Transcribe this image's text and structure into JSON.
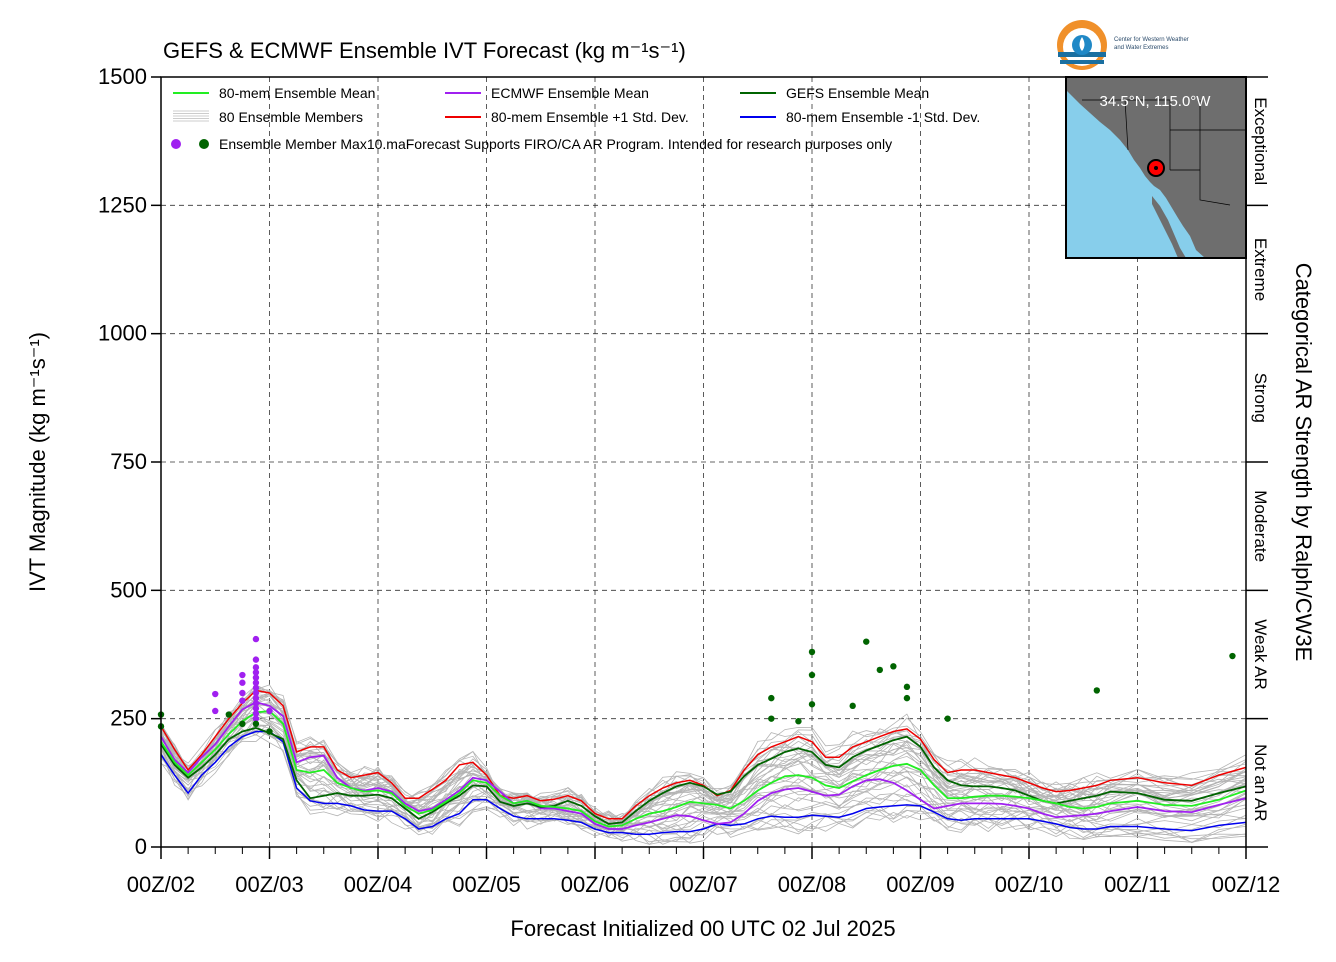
{
  "chart_data": {
    "type": "line",
    "title": "GEFS & ECMWF Ensemble IVT Forecast (kg m⁻¹s⁻¹)",
    "xlabel": "Forecast Initialized 00 UTC 02 Jul 2025",
    "ylabel": "IVT Magnitude (kg m⁻¹s⁻¹)",
    "right_label": "Categorical AR Strength by Ralph/CW3E",
    "ylim": [
      0,
      1500
    ],
    "xlim": [
      0,
      240
    ],
    "x_units": "forecast hour",
    "x_tick_labels": [
      "00Z/02",
      "00Z/03",
      "00Z/04",
      "00Z/05",
      "00Z/06",
      "00Z/07",
      "00Z/08",
      "00Z/09",
      "00Z/10",
      "00Z/11",
      "00Z/12"
    ],
    "y_ticks": [
      0,
      250,
      500,
      750,
      1000,
      1250,
      1500
    ],
    "grid": true,
    "legend_placement": "top-left",
    "legend": [
      {
        "label": "80-mem Ensemble Mean",
        "color": "#22ee22"
      },
      {
        "label": "ECMWF Ensemble Mean",
        "color": "#a020f0"
      },
      {
        "label": "GEFS Ensemble Mean",
        "color": "#006400"
      },
      {
        "label": "80 Ensemble Members",
        "color": "#aaaaaa"
      },
      {
        "label": "80-mem Ensemble +1 Std. Dev.",
        "color": "#ee0000"
      },
      {
        "label": "80-mem Ensemble -1 Std. Dev.",
        "color": "#0000ee"
      }
    ],
    "legend_max_label": "Ensemble Member Max",
    "disclaimer": "10.maForecast Supports FIRO/CA AR Program. Intended for research purposes only",
    "categories_right": [
      "Not an AR",
      "Weak AR",
      "Moderate",
      "Strong",
      "Extreme",
      "Exceptional"
    ],
    "category_bounds": [
      0,
      250,
      500,
      750,
      1000,
      1250,
      1500
    ],
    "series": [
      {
        "name": "80-mem Ensemble Mean",
        "color": "#22ee22",
        "width": 1.8,
        "x": [
          0,
          3,
          6,
          9,
          12,
          15,
          18,
          21,
          24,
          27,
          30,
          33,
          36,
          39,
          42,
          45,
          48,
          51,
          54,
          57,
          60,
          63,
          66,
          69,
          72,
          75,
          78,
          81,
          84,
          87,
          90,
          93,
          96,
          99,
          102,
          105,
          108,
          111,
          114,
          117,
          120,
          123,
          126,
          129,
          132,
          135,
          138,
          141,
          144,
          147,
          150,
          153,
          156,
          159,
          162,
          165,
          168,
          171,
          174,
          177,
          180,
          183,
          186,
          189,
          192,
          195,
          198,
          201,
          204,
          207,
          210,
          216,
          222,
          228,
          234,
          240
        ],
        "y": [
          205,
          165,
          140,
          165,
          190,
          220,
          245,
          262,
          265,
          240,
          150,
          145,
          150,
          125,
          115,
          108,
          110,
          105,
          80,
          65,
          72,
          88,
          105,
          130,
          125,
          100,
          85,
          90,
          80,
          78,
          75,
          70,
          50,
          40,
          42,
          55,
          65,
          70,
          78,
          88,
          85,
          82,
          75,
          90,
          110,
          125,
          138,
          140,
          135,
          120,
          115,
          128,
          140,
          150,
          158,
          162,
          150,
          120,
          95,
          95,
          98,
          100,
          100,
          98,
          95,
          90,
          85,
          78,
          75,
          78,
          85,
          90,
          82,
          80,
          92,
          110
        ]
      },
      {
        "name": "ECMWF Ensemble Mean",
        "color": "#a020f0",
        "width": 1.8,
        "x": [
          0,
          3,
          6,
          9,
          12,
          15,
          18,
          21,
          24,
          27,
          30,
          33,
          36,
          39,
          42,
          45,
          48,
          51,
          54,
          57,
          60,
          63,
          66,
          69,
          72,
          75,
          78,
          81,
          84,
          87,
          90,
          93,
          96,
          99,
          102,
          105,
          108,
          111,
          114,
          117,
          120,
          123,
          126,
          129,
          132,
          135,
          138,
          141,
          144,
          147,
          150,
          153,
          156,
          159,
          162,
          165,
          168,
          171,
          174,
          177,
          180,
          183,
          186,
          189,
          192,
          195,
          198,
          201,
          204,
          207,
          210,
          216,
          222,
          228,
          234,
          240
        ],
        "y": [
          215,
          170,
          145,
          175,
          200,
          235,
          268,
          282,
          275,
          255,
          165,
          175,
          178,
          135,
          115,
          110,
          115,
          108,
          85,
          70,
          75,
          92,
          110,
          135,
          130,
          108,
          85,
          90,
          75,
          75,
          70,
          65,
          45,
          35,
          35,
          42,
          48,
          55,
          62,
          60,
          52,
          45,
          48,
          65,
          90,
          105,
          112,
          115,
          108,
          100,
          102,
          118,
          130,
          132,
          125,
          110,
          92,
          75,
          80,
          85,
          85,
          85,
          84,
          80,
          75,
          65,
          58,
          60,
          62,
          65,
          70,
          78,
          70,
          68,
          82,
          95
        ]
      },
      {
        "name": "GEFS Ensemble Mean",
        "color": "#006400",
        "width": 1.8,
        "x": [
          0,
          3,
          6,
          9,
          12,
          15,
          18,
          21,
          24,
          27,
          30,
          33,
          36,
          39,
          42,
          45,
          48,
          51,
          54,
          57,
          60,
          63,
          66,
          69,
          72,
          75,
          78,
          81,
          84,
          87,
          90,
          93,
          96,
          99,
          102,
          105,
          108,
          111,
          114,
          117,
          120,
          123,
          126,
          129,
          132,
          135,
          138,
          141,
          144,
          147,
          150,
          153,
          156,
          159,
          162,
          165,
          168,
          171,
          174,
          177,
          180,
          183,
          186,
          189,
          192,
          195,
          198,
          201,
          204,
          207,
          210,
          216,
          222,
          228,
          234,
          240
        ],
        "y": [
          200,
          160,
          135,
          155,
          180,
          210,
          225,
          232,
          222,
          210,
          130,
          95,
          100,
          105,
          100,
          100,
          102,
          95,
          75,
          55,
          68,
          85,
          100,
          120,
          118,
          88,
          80,
          85,
          78,
          80,
          90,
          80,
          60,
          45,
          48,
          70,
          90,
          105,
          118,
          125,
          118,
          102,
          108,
          138,
          160,
          172,
          185,
          192,
          185,
          160,
          155,
          175,
          188,
          198,
          208,
          215,
          195,
          155,
          130,
          120,
          118,
          118,
          115,
          110,
          100,
          90,
          85,
          90,
          95,
          100,
          108,
          105,
          92,
          90,
          105,
          118
        ]
      },
      {
        "name": "80-mem Ensemble +1 Std. Dev.",
        "color": "#ee0000",
        "width": 1.5,
        "x": [
          0,
          3,
          6,
          9,
          12,
          15,
          18,
          21,
          24,
          27,
          30,
          33,
          36,
          39,
          42,
          45,
          48,
          51,
          54,
          57,
          60,
          63,
          66,
          69,
          72,
          75,
          78,
          81,
          84,
          87,
          90,
          93,
          96,
          99,
          102,
          105,
          108,
          111,
          114,
          117,
          120,
          123,
          126,
          129,
          132,
          135,
          138,
          141,
          144,
          147,
          150,
          153,
          156,
          159,
          162,
          165,
          168,
          171,
          174,
          177,
          180,
          183,
          186,
          189,
          192,
          195,
          198,
          201,
          204,
          207,
          210,
          216,
          222,
          228,
          234,
          240
        ],
        "y": [
          235,
          190,
          150,
          180,
          215,
          250,
          280,
          305,
          300,
          275,
          185,
          195,
          195,
          150,
          135,
          140,
          145,
          125,
          95,
          95,
          112,
          130,
          160,
          165,
          140,
          100,
          95,
          100,
          90,
          93,
          100,
          90,
          65,
          55,
          55,
          80,
          100,
          115,
          125,
          130,
          120,
          100,
          110,
          150,
          180,
          195,
          205,
          215,
          205,
          175,
          175,
          195,
          205,
          215,
          225,
          230,
          210,
          170,
          145,
          150,
          150,
          145,
          140,
          135,
          125,
          115,
          108,
          110,
          115,
          120,
          130,
          135,
          125,
          120,
          140,
          155
        ]
      },
      {
        "name": "80-mem Ensemble -1 Std. Dev.",
        "color": "#0000ee",
        "width": 1.5,
        "x": [
          0,
          3,
          6,
          9,
          12,
          15,
          18,
          21,
          24,
          27,
          30,
          33,
          36,
          39,
          42,
          45,
          48,
          51,
          54,
          57,
          60,
          63,
          66,
          69,
          72,
          75,
          78,
          81,
          84,
          87,
          90,
          93,
          96,
          99,
          102,
          105,
          108,
          111,
          114,
          117,
          120,
          123,
          126,
          129,
          132,
          135,
          138,
          141,
          144,
          147,
          150,
          153,
          156,
          159,
          162,
          165,
          168,
          171,
          174,
          177,
          180,
          183,
          186,
          189,
          192,
          195,
          198,
          201,
          204,
          207,
          210,
          216,
          222,
          228,
          234,
          240
        ],
        "y": [
          180,
          140,
          105,
          140,
          165,
          195,
          215,
          225,
          225,
          205,
          115,
          90,
          85,
          85,
          80,
          72,
          70,
          70,
          55,
          35,
          40,
          55,
          65,
          92,
          92,
          75,
          60,
          55,
          55,
          55,
          52,
          48,
          35,
          28,
          28,
          25,
          25,
          28,
          30,
          30,
          35,
          45,
          42,
          45,
          55,
          60,
          58,
          58,
          62,
          60,
          58,
          65,
          75,
          78,
          80,
          82,
          80,
          68,
          55,
          52,
          55,
          55,
          55,
          55,
          55,
          50,
          45,
          38,
          35,
          35,
          40,
          40,
          35,
          32,
          42,
          48
        ]
      }
    ],
    "max_markers": {
      "ecmwf_color": "#a020f0",
      "gefs_color": "#006400",
      "ecmwf": [
        {
          "x": 12,
          "y": 298
        },
        {
          "x": 12,
          "y": 265
        },
        {
          "x": 18,
          "y": 335
        },
        {
          "x": 18,
          "y": 320
        },
        {
          "x": 18,
          "y": 300
        },
        {
          "x": 18,
          "y": 285
        },
        {
          "x": 21,
          "y": 405
        },
        {
          "x": 21,
          "y": 365
        },
        {
          "x": 21,
          "y": 350
        },
        {
          "x": 21,
          "y": 340
        },
        {
          "x": 21,
          "y": 330
        },
        {
          "x": 21,
          "y": 320
        },
        {
          "x": 21,
          "y": 310
        },
        {
          "x": 21,
          "y": 300
        },
        {
          "x": 21,
          "y": 290
        },
        {
          "x": 21,
          "y": 280
        },
        {
          "x": 21,
          "y": 270
        },
        {
          "x": 21,
          "y": 260
        },
        {
          "x": 21,
          "y": 250
        },
        {
          "x": 24,
          "y": 265
        }
      ],
      "gefs": [
        {
          "x": 0,
          "y": 258
        },
        {
          "x": 0,
          "y": 235
        },
        {
          "x": 15,
          "y": 258
        },
        {
          "x": 18,
          "y": 240
        },
        {
          "x": 21,
          "y": 240
        },
        {
          "x": 24,
          "y": 225
        },
        {
          "x": 135,
          "y": 290
        },
        {
          "x": 135,
          "y": 250
        },
        {
          "x": 141,
          "y": 245
        },
        {
          "x": 144,
          "y": 278
        },
        {
          "x": 144,
          "y": 380
        },
        {
          "x": 144,
          "y": 335
        },
        {
          "x": 153,
          "y": 275
        },
        {
          "x": 156,
          "y": 400
        },
        {
          "x": 159,
          "y": 345
        },
        {
          "x": 162,
          "y": 352
        },
        {
          "x": 165,
          "y": 312
        },
        {
          "x": 165,
          "y": 290
        },
        {
          "x": 174,
          "y": 250
        },
        {
          "x": 207,
          "y": 305
        },
        {
          "x": 237,
          "y": 372
        }
      ]
    }
  },
  "inset_map": {
    "location_label": "34.5°N, 115.0°W",
    "land_color": "#6e6e6e",
    "ocean_color": "#87ceeb",
    "marker_color": "#ff0000"
  },
  "logo": {
    "line1": "Center for Western Weather",
    "line2": "and Water Extremes"
  }
}
